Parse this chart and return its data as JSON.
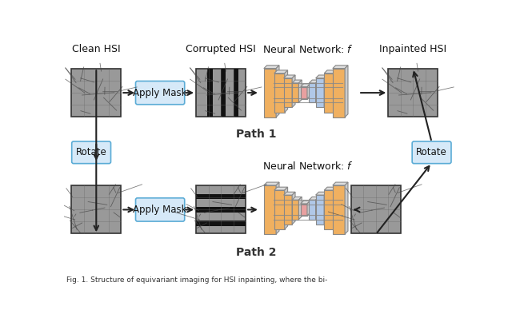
{
  "title": "",
  "caption": "Fig. 1. Structure of equivariant imaging for HSI inpainting, where the bi-",
  "bg_color": "#ffffff",
  "path1_label": "Path 1",
  "path2_label": "Path 2",
  "labels": {
    "clean_hsi": "Clean HSI",
    "corrupted_hsi": "Corrupted HSI",
    "neural_network": "Neural Network: ",
    "inpainted_hsi": "Inpainted HSI",
    "apply_mask": "Apply Mask",
    "rotate": "Rotate"
  },
  "colors": {
    "box_fill": "#d6e9f8",
    "box_edge": "#5bacd6",
    "arrow": "#222222",
    "nn_orange": "#f0b060",
    "nn_blue": "#b0c8e8",
    "nn_pink": "#e8a0a0",
    "path_label": "#333333",
    "text": "#111111",
    "caption": "#333333",
    "img_bg": "#999999",
    "img_line": "#444444",
    "stripe": "#111111"
  }
}
